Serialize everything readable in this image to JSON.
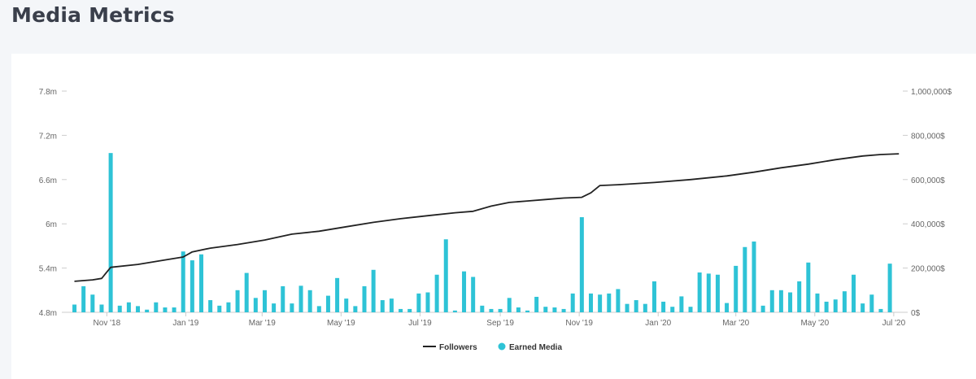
{
  "page": {
    "title": "Media Metrics"
  },
  "colors": {
    "followers": "#222222",
    "earned_media": "#2ec3d6",
    "axis": "#cccccc"
  },
  "chart_data": {
    "type": "bar",
    "title": "",
    "legend": {
      "placement": "bottom-center",
      "items": [
        "Followers",
        "Earned Media"
      ]
    },
    "x_axis": {
      "range": [
        "2018-10-01",
        "2020-07-08"
      ],
      "ticks": [
        {
          "date": "2018-11-01",
          "label": "Nov '18"
        },
        {
          "date": "2019-01-01",
          "label": "Jan '19"
        },
        {
          "date": "2019-03-01",
          "label": "Mar '19"
        },
        {
          "date": "2019-05-01",
          "label": "May '19"
        },
        {
          "date": "2019-07-01",
          "label": "Jul '19"
        },
        {
          "date": "2019-09-01",
          "label": "Sep '19"
        },
        {
          "date": "2019-11-01",
          "label": "Nov '19"
        },
        {
          "date": "2020-01-01",
          "label": "Jan '20"
        },
        {
          "date": "2020-03-01",
          "label": "Mar '20"
        },
        {
          "date": "2020-05-01",
          "label": "May '20"
        },
        {
          "date": "2020-07-01",
          "label": "Jul '20"
        }
      ]
    },
    "y_left": {
      "name": "Followers",
      "range": [
        4800000,
        7800000
      ],
      "ticks": [
        {
          "value": 4800000,
          "label": "4.8m"
        },
        {
          "value": 5400000,
          "label": "5.4m"
        },
        {
          "value": 6000000,
          "label": "6m"
        },
        {
          "value": 6600000,
          "label": "6.6m"
        },
        {
          "value": 7200000,
          "label": "7.2m"
        },
        {
          "value": 7800000,
          "label": "7.8m"
        }
      ]
    },
    "y_right": {
      "name": "Earned Media",
      "range": [
        0,
        1000000
      ],
      "ticks": [
        {
          "value": 0,
          "label": "0$"
        },
        {
          "value": 200000,
          "label": "200,000$"
        },
        {
          "value": 400000,
          "label": "400,000$"
        },
        {
          "value": 600000,
          "label": "600,000$"
        },
        {
          "value": 800000,
          "label": "800,000$"
        },
        {
          "value": 1000000,
          "label": "1,000,000$"
        }
      ]
    },
    "grid": false,
    "series": [
      {
        "name": "Followers",
        "type": "line",
        "axis": "left",
        "points": [
          [
            "2018-10-07",
            5220000
          ],
          [
            "2018-10-21",
            5240000
          ],
          [
            "2018-10-28",
            5260000
          ],
          [
            "2018-11-04",
            5410000
          ],
          [
            "2018-11-25",
            5450000
          ],
          [
            "2018-12-16",
            5510000
          ],
          [
            "2018-12-30",
            5550000
          ],
          [
            "2019-01-06",
            5620000
          ],
          [
            "2019-01-20",
            5670000
          ],
          [
            "2019-02-10",
            5720000
          ],
          [
            "2019-03-03",
            5780000
          ],
          [
            "2019-03-24",
            5860000
          ],
          [
            "2019-04-14",
            5900000
          ],
          [
            "2019-05-05",
            5960000
          ],
          [
            "2019-05-26",
            6020000
          ],
          [
            "2019-06-16",
            6070000
          ],
          [
            "2019-07-07",
            6110000
          ],
          [
            "2019-07-28",
            6150000
          ],
          [
            "2019-08-11",
            6170000
          ],
          [
            "2019-08-25",
            6240000
          ],
          [
            "2019-09-08",
            6290000
          ],
          [
            "2019-09-22",
            6310000
          ],
          [
            "2019-10-06",
            6330000
          ],
          [
            "2019-10-20",
            6350000
          ],
          [
            "2019-11-03",
            6360000
          ],
          [
            "2019-11-10",
            6420000
          ],
          [
            "2019-11-17",
            6520000
          ],
          [
            "2019-12-01",
            6530000
          ],
          [
            "2019-12-29",
            6560000
          ],
          [
            "2020-01-26",
            6600000
          ],
          [
            "2020-02-23",
            6650000
          ],
          [
            "2020-03-15",
            6700000
          ],
          [
            "2020-04-05",
            6760000
          ],
          [
            "2020-04-26",
            6810000
          ],
          [
            "2020-05-17",
            6870000
          ],
          [
            "2020-06-07",
            6920000
          ],
          [
            "2020-06-21",
            6940000
          ],
          [
            "2020-07-05",
            6950000
          ]
        ]
      },
      {
        "name": "Earned Media",
        "type": "bar",
        "axis": "right",
        "points": [
          [
            "2018-10-07",
            35000
          ],
          [
            "2018-10-14",
            118000
          ],
          [
            "2018-10-21",
            80000
          ],
          [
            "2018-10-28",
            35000
          ],
          [
            "2018-11-04",
            720000
          ],
          [
            "2018-11-11",
            30000
          ],
          [
            "2018-11-18",
            45000
          ],
          [
            "2018-11-25",
            28000
          ],
          [
            "2018-12-02",
            12000
          ],
          [
            "2018-12-09",
            45000
          ],
          [
            "2018-12-16",
            22000
          ],
          [
            "2018-12-23",
            22000
          ],
          [
            "2018-12-30",
            275000
          ],
          [
            "2019-01-06",
            235000
          ],
          [
            "2019-01-13",
            262000
          ],
          [
            "2019-01-20",
            55000
          ],
          [
            "2019-01-27",
            30000
          ],
          [
            "2019-02-03",
            45000
          ],
          [
            "2019-02-10",
            100000
          ],
          [
            "2019-02-17",
            178000
          ],
          [
            "2019-02-24",
            65000
          ],
          [
            "2019-03-03",
            100000
          ],
          [
            "2019-03-10",
            40000
          ],
          [
            "2019-03-17",
            118000
          ],
          [
            "2019-03-24",
            40000
          ],
          [
            "2019-03-31",
            120000
          ],
          [
            "2019-04-07",
            100000
          ],
          [
            "2019-04-14",
            28000
          ],
          [
            "2019-04-21",
            75000
          ],
          [
            "2019-04-28",
            155000
          ],
          [
            "2019-05-05",
            62000
          ],
          [
            "2019-05-12",
            28000
          ],
          [
            "2019-05-19",
            118000
          ],
          [
            "2019-05-26",
            192000
          ],
          [
            "2019-06-02",
            55000
          ],
          [
            "2019-06-09",
            62000
          ],
          [
            "2019-06-16",
            15000
          ],
          [
            "2019-06-23",
            15000
          ],
          [
            "2019-06-30",
            85000
          ],
          [
            "2019-07-07",
            90000
          ],
          [
            "2019-07-14",
            170000
          ],
          [
            "2019-07-21",
            330000
          ],
          [
            "2019-07-28",
            8000
          ],
          [
            "2019-08-04",
            185000
          ],
          [
            "2019-08-11",
            160000
          ],
          [
            "2019-08-18",
            30000
          ],
          [
            "2019-08-25",
            15000
          ],
          [
            "2019-09-01",
            15000
          ],
          [
            "2019-09-08",
            65000
          ],
          [
            "2019-09-15",
            22000
          ],
          [
            "2019-09-22",
            8000
          ],
          [
            "2019-09-29",
            70000
          ],
          [
            "2019-10-06",
            25000
          ],
          [
            "2019-10-13",
            22000
          ],
          [
            "2019-10-20",
            15000
          ],
          [
            "2019-10-27",
            85000
          ],
          [
            "2019-11-03",
            430000
          ],
          [
            "2019-11-10",
            85000
          ],
          [
            "2019-11-17",
            80000
          ],
          [
            "2019-11-24",
            85000
          ],
          [
            "2019-12-01",
            105000
          ],
          [
            "2019-12-08",
            38000
          ],
          [
            "2019-12-15",
            55000
          ],
          [
            "2019-12-22",
            38000
          ],
          [
            "2019-12-29",
            140000
          ],
          [
            "2020-01-05",
            48000
          ],
          [
            "2020-01-12",
            25000
          ],
          [
            "2020-01-19",
            72000
          ],
          [
            "2020-01-26",
            25000
          ],
          [
            "2020-02-02",
            180000
          ],
          [
            "2020-02-09",
            175000
          ],
          [
            "2020-02-16",
            170000
          ],
          [
            "2020-02-23",
            42000
          ],
          [
            "2020-03-01",
            210000
          ],
          [
            "2020-03-08",
            295000
          ],
          [
            "2020-03-15",
            320000
          ],
          [
            "2020-03-22",
            30000
          ],
          [
            "2020-03-29",
            100000
          ],
          [
            "2020-04-05",
            100000
          ],
          [
            "2020-04-12",
            90000
          ],
          [
            "2020-04-19",
            140000
          ],
          [
            "2020-04-26",
            225000
          ],
          [
            "2020-05-03",
            85000
          ],
          [
            "2020-05-10",
            48000
          ],
          [
            "2020-05-17",
            58000
          ],
          [
            "2020-05-24",
            95000
          ],
          [
            "2020-05-31",
            170000
          ],
          [
            "2020-06-07",
            40000
          ],
          [
            "2020-06-14",
            80000
          ],
          [
            "2020-06-21",
            15000
          ],
          [
            "2020-06-28",
            220000
          ]
        ]
      }
    ]
  }
}
